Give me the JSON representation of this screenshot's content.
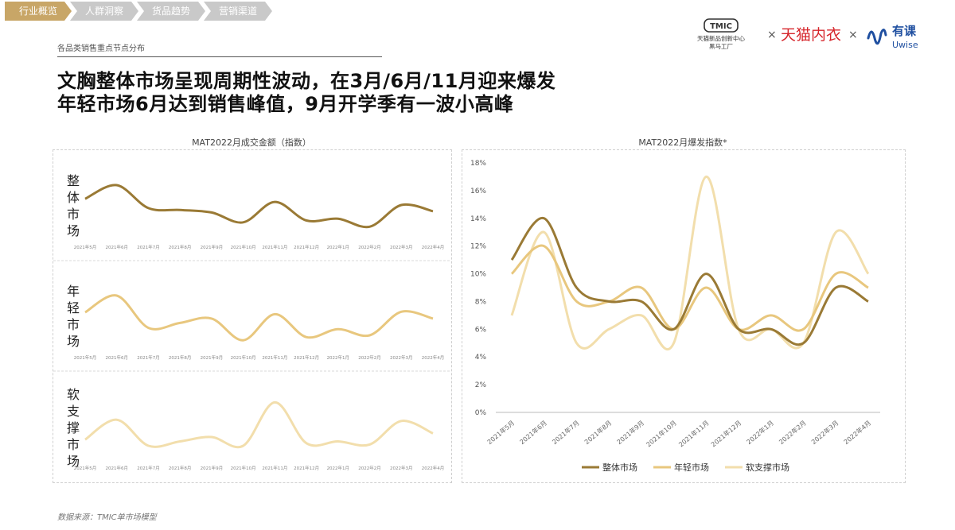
{
  "nav": {
    "tabs": [
      {
        "label": "行业概览",
        "active": true
      },
      {
        "label": "人群洞察",
        "active": false
      },
      {
        "label": "货品趋势",
        "active": false
      },
      {
        "label": "营销渠道",
        "active": false
      }
    ]
  },
  "header": {
    "section_label": "各品类销售重点节点分布",
    "headline_line1": "文胸整体市场呈现周期性波动，在3月/6月/11月迎来爆发",
    "headline_line2": "年轻市场6月达到销售峰值，9月开学季有一波小高峰"
  },
  "logos": {
    "tmic_text": "TMIC",
    "tmic_caption_1": "天猫新品创新中心",
    "tmic_caption_2": "黑马工厂",
    "tmall_text": "天猫内衣",
    "times": "×",
    "uwise_text": "有课",
    "uwise_sub": "Uwise"
  },
  "source_note": "数据来源：TMIC单市场模型",
  "colors": {
    "accent": "#c8a667",
    "tab_inactive": "#c9c9c9",
    "series_whole": "#9a7a35",
    "series_young": "#e8c77e",
    "series_soft": "#f2deac"
  },
  "chart_data": [
    {
      "type": "line",
      "title": "MAT2022月成交金额（指数）",
      "categories": [
        "2021年5月",
        "2021年6月",
        "2021年7月",
        "2021年8月",
        "2021年9月",
        "2021年10月",
        "2021年11月",
        "2021年12月",
        "2022年1月",
        "2022年2月",
        "2022年3月",
        "2022年4月"
      ],
      "panels": [
        {
          "label": "整体市场",
          "color": "#9a7a35",
          "values": [
            60,
            82,
            45,
            42,
            38,
            22,
            55,
            25,
            28,
            15,
            50,
            40
          ],
          "ylim": [
            0,
            100
          ]
        },
        {
          "label": "年轻市场",
          "color": "#e8c77e",
          "values": [
            55,
            82,
            30,
            38,
            45,
            10,
            52,
            15,
            28,
            18,
            56,
            45
          ],
          "ylim": [
            0,
            100
          ]
        },
        {
          "label": "软支撑市场",
          "color": "#f2deac",
          "values": [
            28,
            60,
            18,
            25,
            32,
            18,
            88,
            22,
            25,
            20,
            58,
            38
          ],
          "ylim": [
            0,
            100
          ]
        }
      ],
      "axes_shown": false,
      "grid": false
    },
    {
      "type": "line",
      "title": "MAT2022月爆发指数*",
      "categories": [
        "2021年5月",
        "2021年6月",
        "2021年7月",
        "2021年8月",
        "2021年9月",
        "2021年10月",
        "2021年11月",
        "2021年12月",
        "2022年1月",
        "2022年2月",
        "2022年3月",
        "2022年4月"
      ],
      "y_ticks": [
        "0%",
        "2%",
        "4%",
        "6%",
        "8%",
        "10%",
        "12%",
        "14%",
        "16%",
        "18%"
      ],
      "ylim": [
        0,
        18
      ],
      "series": [
        {
          "name": "整体市场",
          "color": "#9a7a35",
          "values": [
            11,
            14,
            9,
            8,
            8,
            6,
            10,
            6,
            6,
            5,
            9,
            8
          ]
        },
        {
          "name": "年轻市场",
          "color": "#e8c77e",
          "values": [
            10,
            12,
            8,
            8,
            9,
            6,
            9,
            6,
            7,
            6,
            10,
            9
          ]
        },
        {
          "name": "软支撑市场",
          "color": "#f2deac",
          "values": [
            7,
            13,
            5,
            6,
            7,
            5,
            17,
            6,
            6,
            5,
            13,
            10
          ]
        }
      ],
      "legend": "bottom",
      "grid": false
    }
  ]
}
